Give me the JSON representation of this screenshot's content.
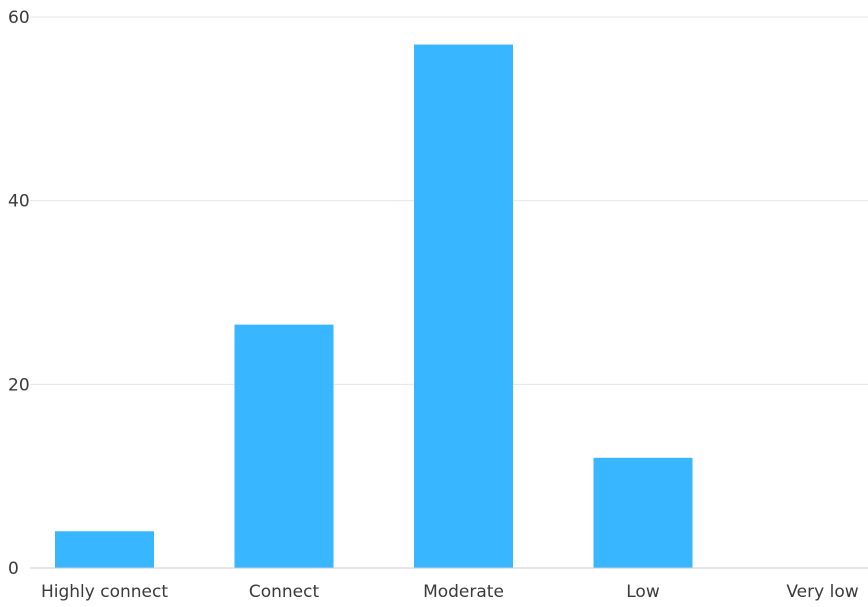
{
  "chart_data": {
    "type": "bar",
    "categories": [
      "Highly connect",
      "Connect",
      "Moderate",
      "Low",
      "Very low"
    ],
    "values": [
      4,
      26.5,
      57,
      12,
      0
    ],
    "ylim": [
      0,
      60
    ],
    "yticks": [
      0,
      20,
      40,
      60
    ],
    "grid": true,
    "bar_color": "#38b6ff",
    "grid_color": "#e6e6e6"
  }
}
